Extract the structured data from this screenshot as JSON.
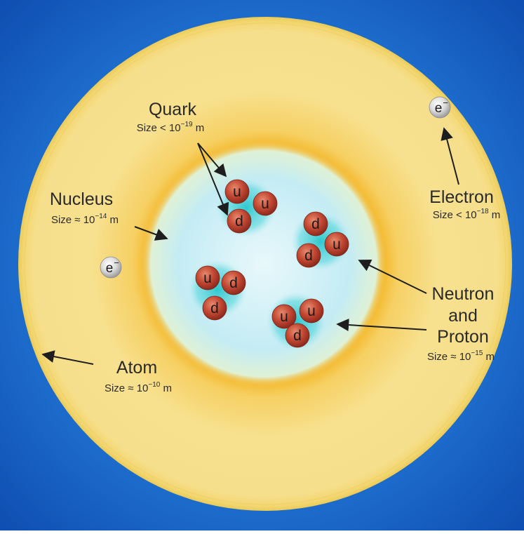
{
  "colors": {
    "background_blue": "#1a63c9",
    "atom_yellow": "#f6e08a",
    "atom_orange": "#f2b11c",
    "nucleus_cyan": "#bfeaf2",
    "quark_red": "#b9382a",
    "electron_gray": "#d8d8d8",
    "text": "#2a2a2a"
  },
  "labels": {
    "quark": {
      "title": "Quark",
      "size_prefix": "Size < 10",
      "size_exp": "−19",
      "size_unit": " m"
    },
    "nucleus": {
      "title": "Nucleus",
      "size_prefix": "Size ≈ 10",
      "size_exp": "−14",
      "size_unit": " m"
    },
    "electron": {
      "title": "Electron",
      "size_prefix": "Size < 10",
      "size_exp": "−18",
      "size_unit": " m"
    },
    "neutron_proton": {
      "line1": "Neutron",
      "line2": "and",
      "line3": "Proton",
      "size_prefix": "Size ≈ 10",
      "size_exp": "−15",
      "size_unit": " m"
    },
    "atom": {
      "title": "Atom",
      "size_prefix": "Size ≈ 10",
      "size_exp": "−10",
      "size_unit": " m"
    }
  },
  "electron_symbol": "e",
  "electron_charge": "−",
  "quark_up": "u",
  "quark_down": "d"
}
